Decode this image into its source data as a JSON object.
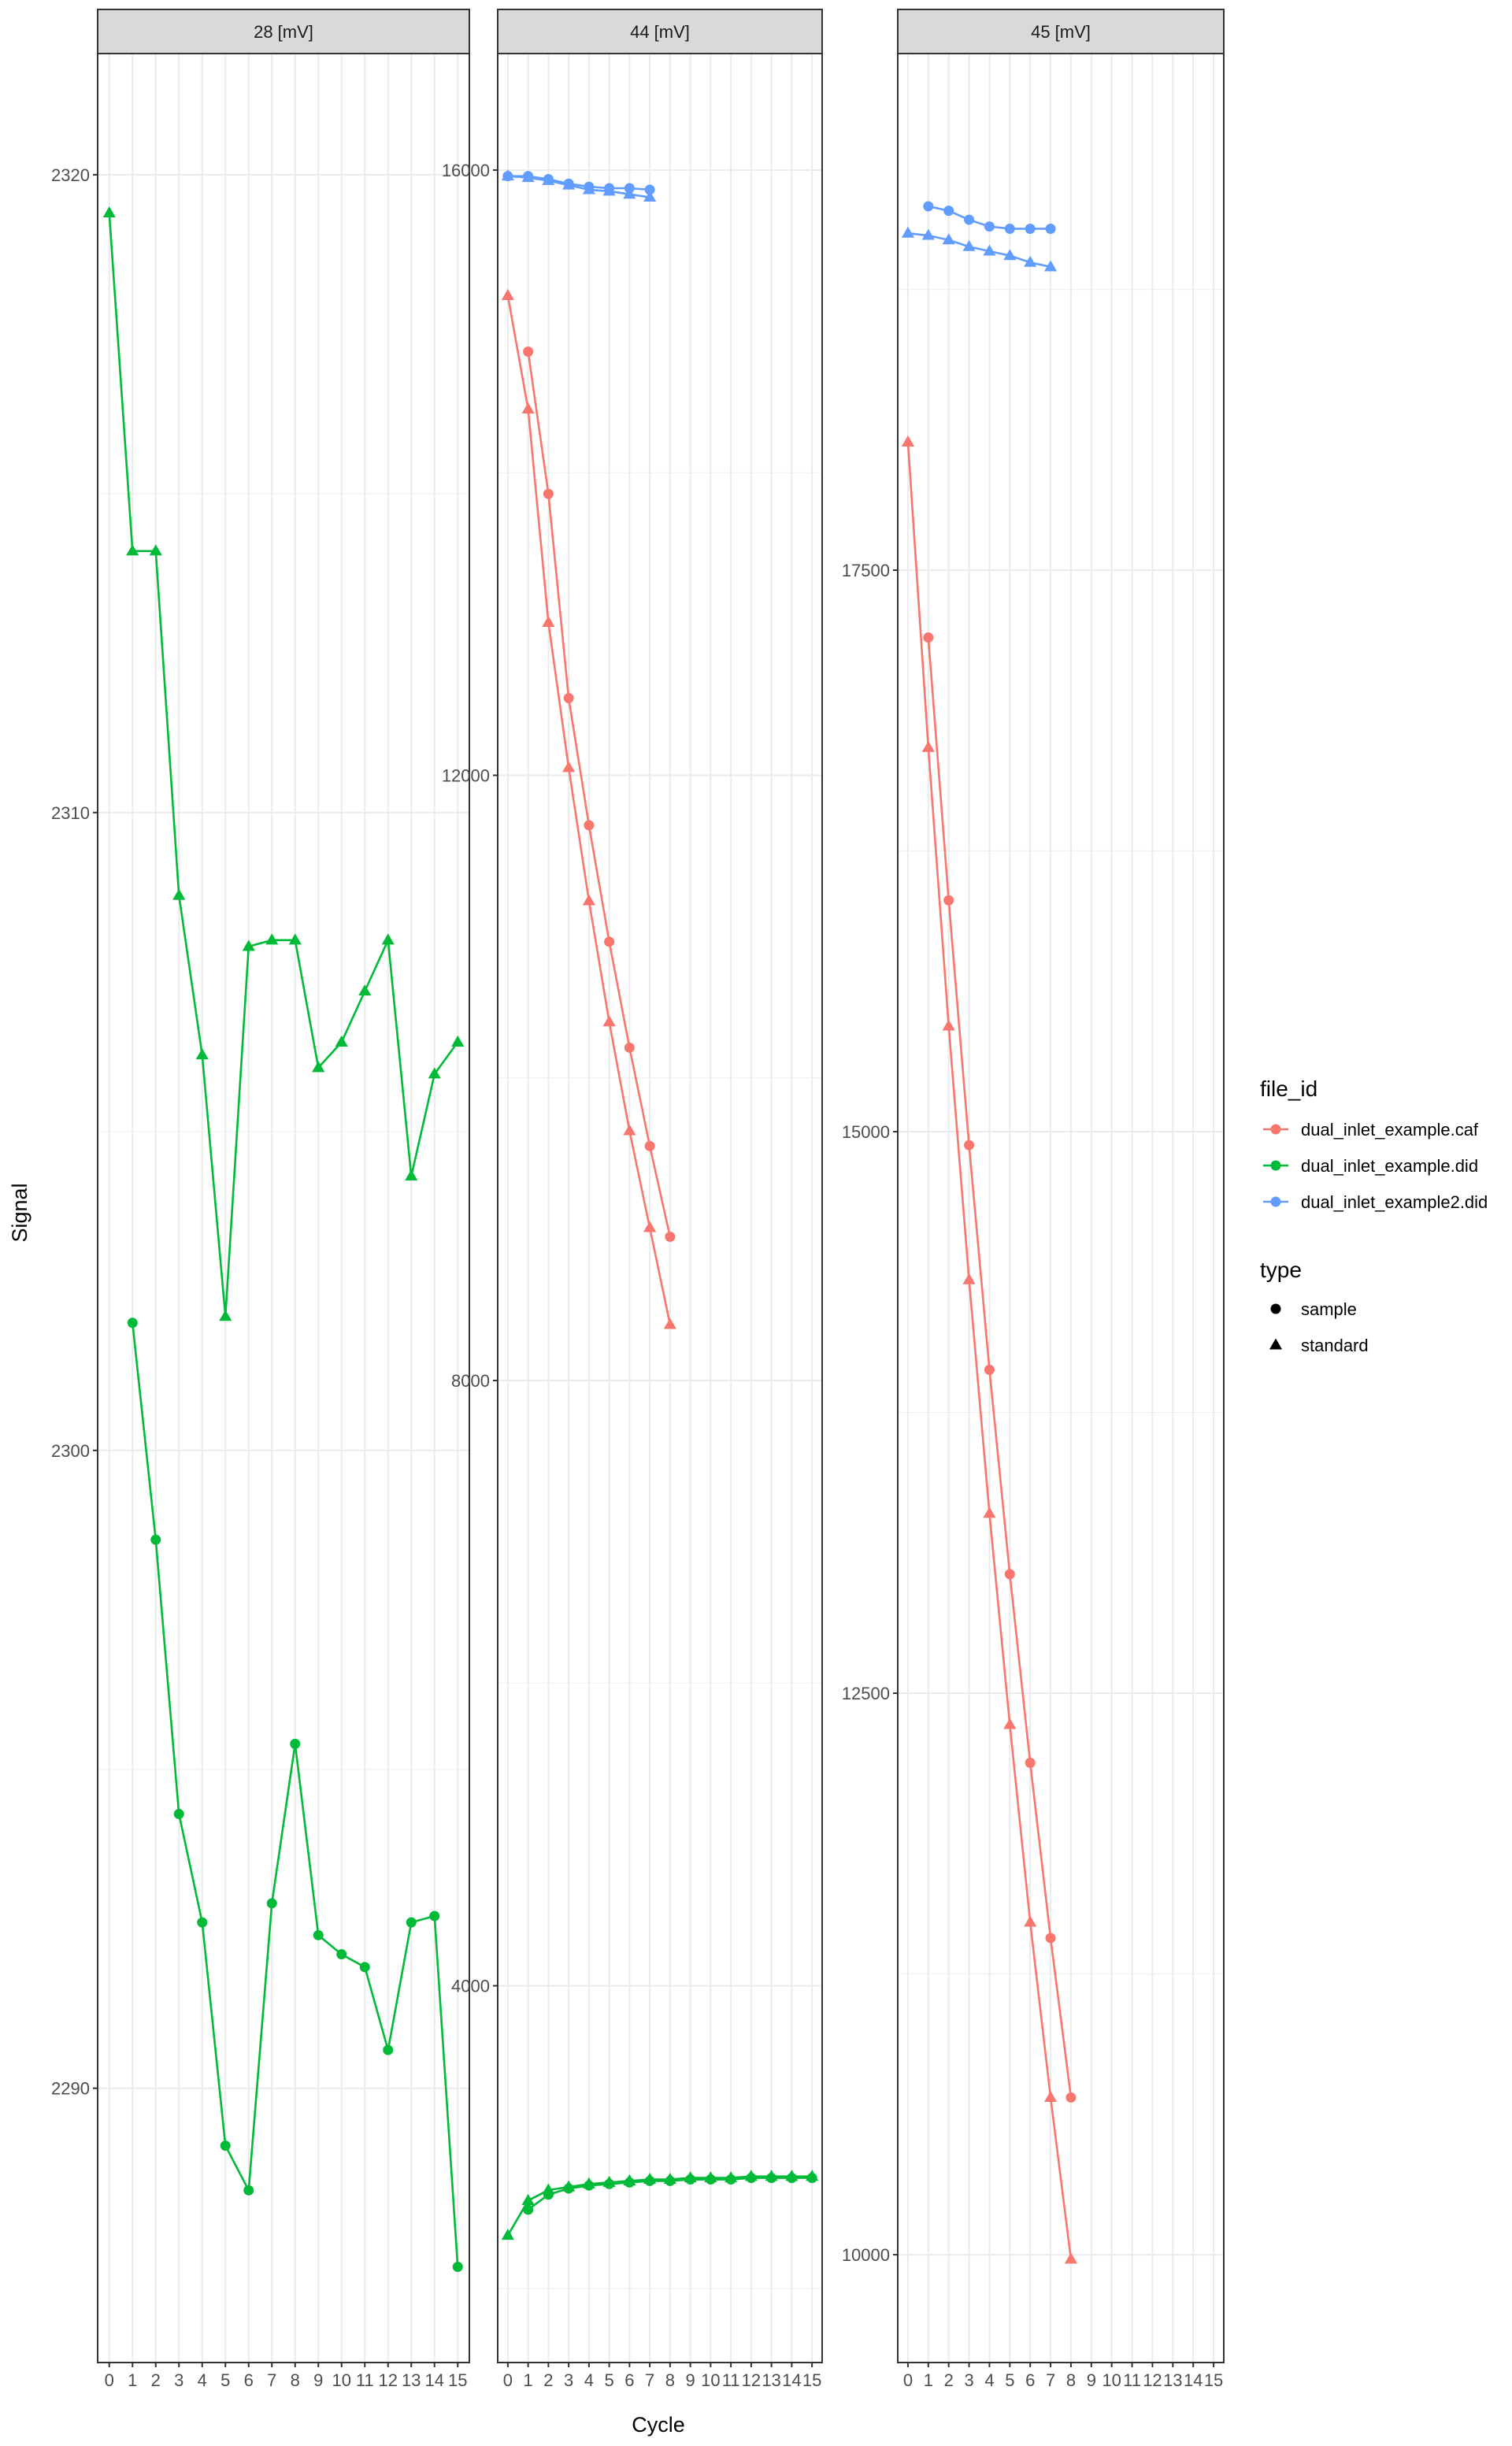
{
  "chart_data": {
    "type": "line",
    "x_label": "Cycle",
    "y_label": "Signal",
    "x_range": [
      -0.5,
      15.5
    ],
    "x_ticks": [
      "0",
      "1",
      "2",
      "3",
      "4",
      "5",
      "6",
      "7",
      "8",
      "9",
      "10",
      "11",
      "12",
      "13",
      "14",
      "15"
    ],
    "grid": true,
    "legend_position": "right",
    "legend": {
      "file_id_title": "file_id",
      "file_id_entries": [
        {
          "label": "dual_inlet_example.caf",
          "color": "#F8766D"
        },
        {
          "label": "dual_inlet_example.did",
          "color": "#00BA38"
        },
        {
          "label": "dual_inlet_example2.did",
          "color": "#619CFF"
        }
      ],
      "type_title": "type",
      "type_entries": [
        {
          "label": "sample",
          "shape": "circle"
        },
        {
          "label": "standard",
          "shape": "triangle"
        }
      ]
    },
    "panels": [
      {
        "strip": "28 [mV]",
        "y_range": [
          2285.7,
          2321.9
        ],
        "y_ticks": [
          "2290",
          "2300",
          "2310",
          "2320"
        ],
        "y_tick_values": [
          2290,
          2300,
          2310,
          2320
        ],
        "series": [
          {
            "file_id": "dual_inlet_example.did",
            "type": "standard",
            "x": [
              0,
              1,
              2,
              3,
              4,
              5,
              6,
              7,
              8,
              9,
              10,
              11,
              12,
              13,
              14,
              15
            ],
            "y": [
              2319.4,
              2314.1,
              2314.1,
              2308.7,
              2306.2,
              2302.1,
              2307.9,
              2308.0,
              2308.0,
              2306.0,
              2306.4,
              2307.2,
              2308.0,
              2304.3,
              2305.9,
              2306.4
            ]
          },
          {
            "file_id": "dual_inlet_example.did",
            "type": "sample",
            "x": [
              1,
              2,
              3,
              4,
              5,
              6,
              7,
              8,
              9,
              10,
              11,
              12,
              13,
              14,
              15
            ],
            "y": [
              2302.0,
              2298.6,
              2294.3,
              2292.6,
              2289.1,
              2288.4,
              2292.9,
              2295.4,
              2292.4,
              2292.1,
              2291.9,
              2290.6,
              2292.6,
              2292.7,
              2287.2
            ]
          }
        ]
      },
      {
        "strip": "44 [mV]",
        "y_range": [
          1510,
          16770
        ],
        "y_ticks": [
          "4000",
          "8000",
          "12000",
          "16000"
        ],
        "y_tick_values": [
          4000,
          8000,
          12000,
          16000
        ],
        "series": [
          {
            "file_id": "dual_inlet_example2.did",
            "type": "sample",
            "x": [
              0,
              1,
              2,
              3,
              4,
              5,
              6,
              7
            ],
            "y": [
              15960,
              15960,
              15940,
              15910,
              15890,
              15880,
              15880,
              15870
            ]
          },
          {
            "file_id": "dual_inlet_example2.did",
            "type": "standard",
            "x": [
              0,
              1,
              2,
              3,
              4,
              5,
              6,
              7
            ],
            "y": [
              15960,
              15950,
              15930,
              15900,
              15870,
              15860,
              15840,
              15820
            ]
          },
          {
            "file_id": "dual_inlet_example.caf",
            "type": "standard",
            "x": [
              0,
              1,
              2,
              3,
              4,
              5,
              6,
              7,
              8
            ],
            "y": [
              15170,
              14420,
              13010,
              12050,
              11170,
              10370,
              9650,
              9010,
              8370
            ]
          },
          {
            "file_id": "dual_inlet_example.caf",
            "type": "sample",
            "x": [
              1,
              2,
              3,
              4,
              5,
              6,
              7,
              8
            ],
            "y": [
              14800,
              13860,
              12510,
              11670,
              10900,
              10200,
              9550,
              8950
            ]
          },
          {
            "file_id": "dual_inlet_example.did",
            "type": "standard",
            "x": [
              0,
              1,
              2,
              3,
              4,
              5,
              6,
              7,
              8,
              9,
              10,
              11,
              12,
              13,
              14,
              15
            ],
            "y": [
              2350,
              2580,
              2650,
              2670,
              2690,
              2700,
              2710,
              2720,
              2720,
              2730,
              2730,
              2730,
              2740,
              2740,
              2740,
              2740
            ]
          },
          {
            "file_id": "dual_inlet_example.did",
            "type": "sample",
            "x": [
              1,
              2,
              3,
              4,
              5,
              6,
              7,
              8,
              9,
              10,
              11,
              12,
              13,
              14,
              15
            ],
            "y": [
              2520,
              2620,
              2660,
              2680,
              2690,
              2700,
              2710,
              2710,
              2720,
              2720,
              2720,
              2730,
              2730,
              2730,
              2730
            ]
          }
        ]
      },
      {
        "strip": "45 [mV]",
        "y_range": [
          9520,
          19800
        ],
        "y_ticks": [
          "10000",
          "12500",
          "15000",
          "17500"
        ],
        "y_tick_values": [
          10000,
          12500,
          15000,
          17500
        ],
        "series": [
          {
            "file_id": "dual_inlet_example2.did",
            "type": "sample",
            "x": [
              1,
              2,
              3,
              4,
              5,
              6,
              7
            ],
            "y": [
              19120,
              19100,
              19060,
              19030,
              19020,
              19020,
              19020
            ]
          },
          {
            "file_id": "dual_inlet_example2.did",
            "type": "standard",
            "x": [
              0,
              1,
              2,
              3,
              4,
              5,
              6,
              7
            ],
            "y": [
              19000,
              18990,
              18970,
              18940,
              18920,
              18900,
              18870,
              18850
            ]
          },
          {
            "file_id": "dual_inlet_example.caf",
            "type": "standard",
            "x": [
              0,
              1,
              2,
              3,
              4,
              5,
              6,
              7,
              8
            ],
            "y": [
              18070,
              16710,
              15470,
              14340,
              13300,
              12360,
              11480,
              10700,
              9980
            ]
          },
          {
            "file_id": "dual_inlet_example.caf",
            "type": "sample",
            "x": [
              1,
              2,
              3,
              4,
              5,
              6,
              7,
              8
            ],
            "y": [
              17200,
              16030,
              14940,
              13940,
              13030,
              12190,
              11410,
              10700
            ]
          }
        ]
      }
    ]
  }
}
